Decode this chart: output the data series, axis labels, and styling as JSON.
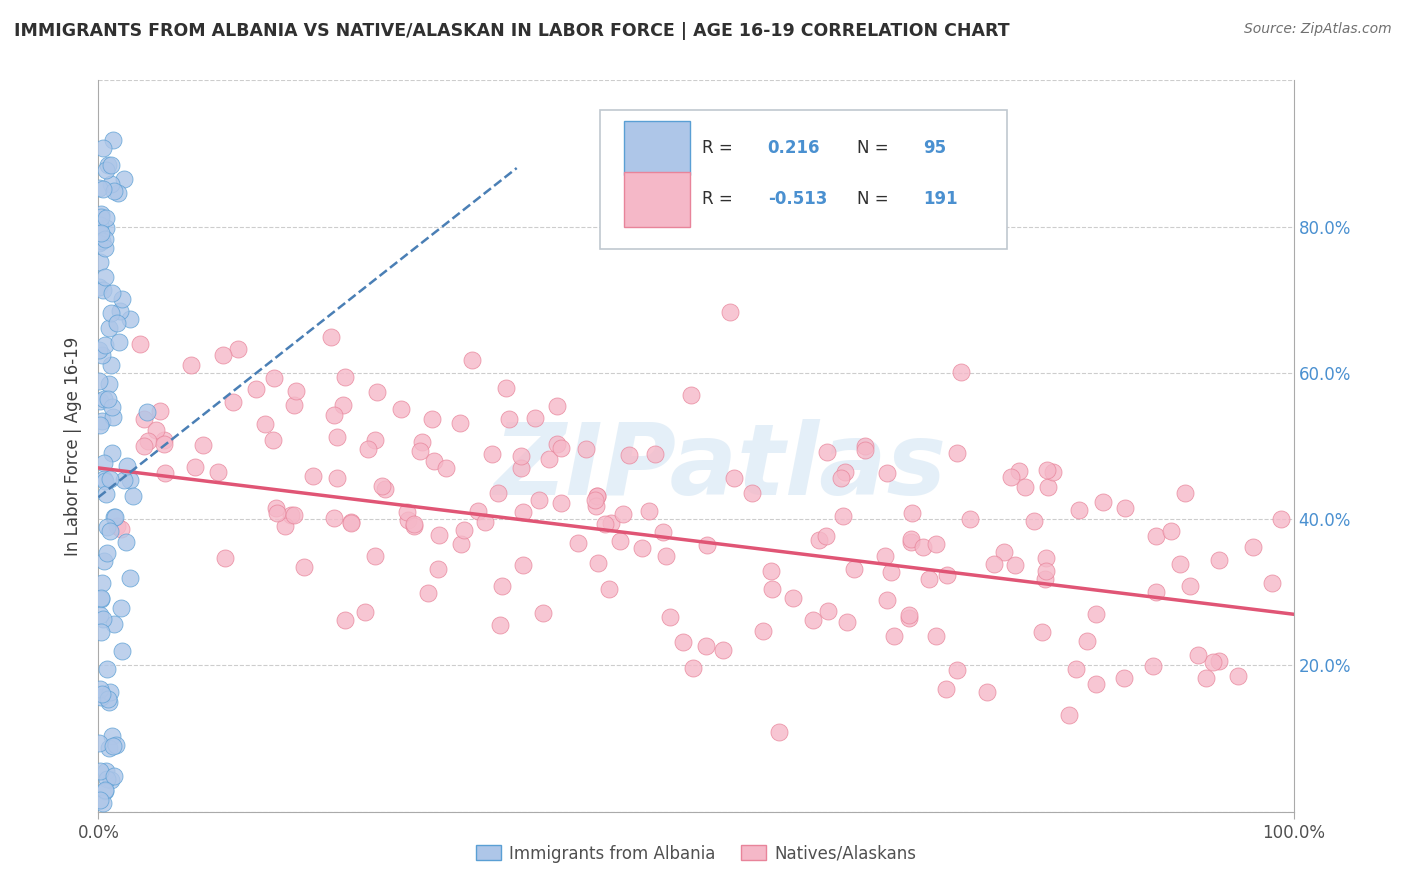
{
  "title": "IMMIGRANTS FROM ALBANIA VS NATIVE/ALASKAN IN LABOR FORCE | AGE 16-19 CORRELATION CHART",
  "source": "Source: ZipAtlas.com",
  "ylabel": "In Labor Force | Age 16-19",
  "R_blue": 0.216,
  "N_blue": 95,
  "R_pink": -0.513,
  "N_pink": 191,
  "legend_label_blue": "Immigrants from Albania",
  "legend_label_pink": "Natives/Alaskans",
  "watermark_text": "ZIPatlas",
  "blue_fill": "#aec6e8",
  "blue_edge": "#5a9fd4",
  "pink_fill": "#f5b8c8",
  "pink_edge": "#e8849a",
  "blue_line_color": "#4a7fb5",
  "pink_line_color": "#e05575",
  "grid_color": "#c8c8c8",
  "title_color": "#303030",
  "source_color": "#707070",
  "legend_text_color": "#303030",
  "legend_value_color": "#4a90d0",
  "right_tick_color": "#4a90d0",
  "xmin": 0.0,
  "xmax": 1.0,
  "ymin": 0.0,
  "ymax": 1.0,
  "right_yticks": [
    0.2,
    0.4,
    0.6,
    0.8
  ],
  "right_yticklabels": [
    "20.0%",
    "40.0%",
    "60.0%",
    "80.0%"
  ],
  "xtick_positions": [
    0.0,
    1.0
  ],
  "xtick_labels": [
    "0.0%",
    "100.0%"
  ],
  "pink_line_x0": 0.0,
  "pink_line_x1": 1.0,
  "pink_line_y0": 0.47,
  "pink_line_y1": 0.27,
  "blue_line_x0": 0.0,
  "blue_line_x1": 0.35,
  "blue_line_y0": 0.43,
  "blue_line_y1": 0.88
}
